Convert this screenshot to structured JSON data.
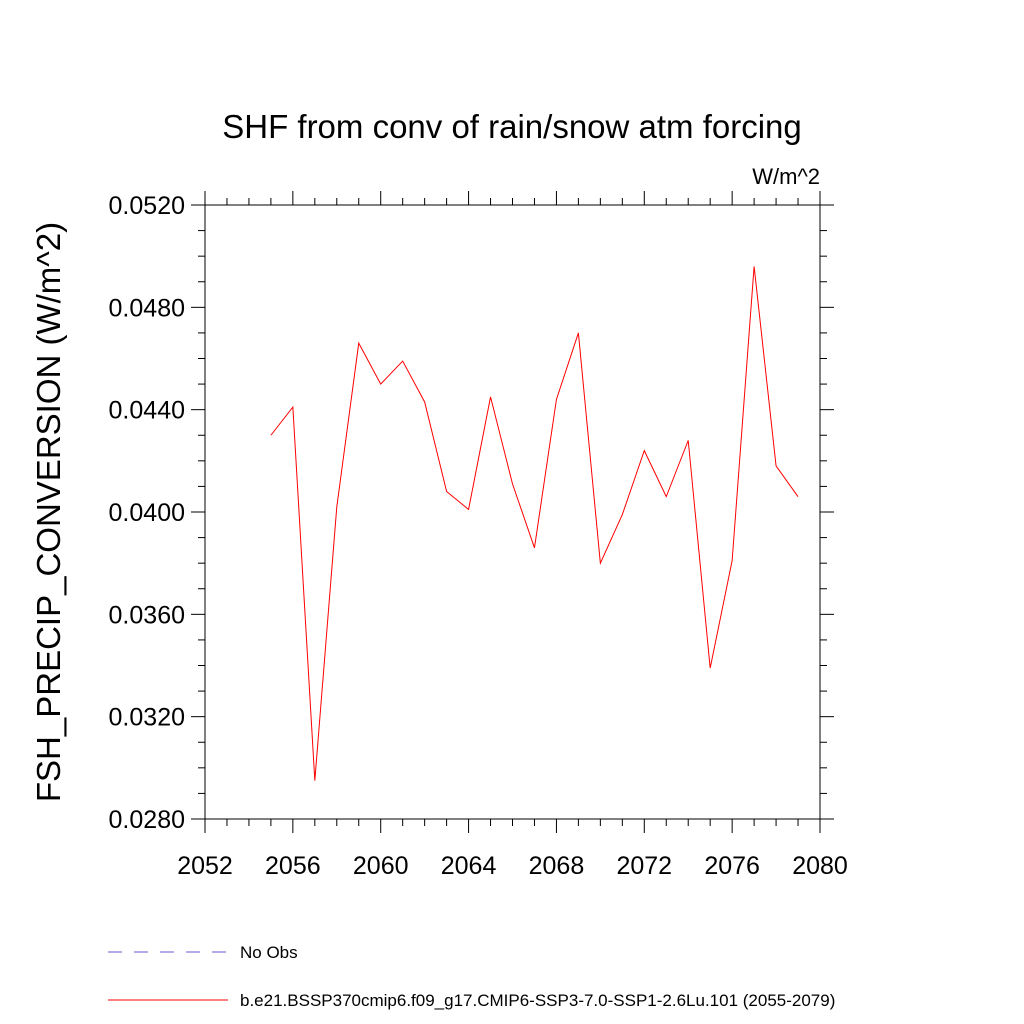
{
  "chart_data": {
    "type": "line",
    "title": "SHF from conv of rain/snow atm forcing",
    "units": "W/m^2",
    "ylabel": "FSH_PRECIP_CONVERSION  (W/m^2)",
    "xlabel": "",
    "xlim": [
      2052,
      2080
    ],
    "ylim": [
      0.028,
      0.052
    ],
    "x_ticks": [
      2052,
      2056,
      2060,
      2064,
      2068,
      2072,
      2076,
      2080
    ],
    "x_tick_labels": [
      "2052",
      "2056",
      "2060",
      "2064",
      "2068",
      "2072",
      "2076",
      "2080"
    ],
    "y_ticks": [
      0.028,
      0.032,
      0.036,
      0.04,
      0.044,
      0.048,
      0.052
    ],
    "y_tick_labels": [
      "0.0280",
      "0.0320",
      "0.0360",
      "0.0400",
      "0.0440",
      "0.0480",
      "0.0520"
    ],
    "x_minor_step": 1,
    "y_minor_step": 0.001,
    "grid": false,
    "legend_position": "bottom-left, below plot",
    "series": [
      {
        "name": "No Obs",
        "color": "#6a5acd",
        "dash": "dashed",
        "x": [],
        "values": []
      },
      {
        "name": "b.e21.BSSP370cmip6.f09_g17.CMIP6-SSP3-7.0-SSP1-2.6Lu.101 (2055-2079)",
        "color": "#ff0000",
        "dash": "solid",
        "x": [
          2055,
          2056,
          2057,
          2058,
          2059,
          2060,
          2061,
          2062,
          2063,
          2064,
          2065,
          2066,
          2067,
          2068,
          2069,
          2070,
          2071,
          2072,
          2073,
          2074,
          2075,
          2076,
          2077,
          2078,
          2079
        ],
        "values": [
          0.043,
          0.0441,
          0.0295,
          0.0402,
          0.0466,
          0.045,
          0.0459,
          0.0443,
          0.0408,
          0.0401,
          0.0445,
          0.0411,
          0.0386,
          0.0444,
          0.047,
          0.038,
          0.0399,
          0.0424,
          0.0406,
          0.0428,
          0.0339,
          0.0381,
          0.0496,
          0.0418,
          0.0406
        ]
      }
    ]
  }
}
